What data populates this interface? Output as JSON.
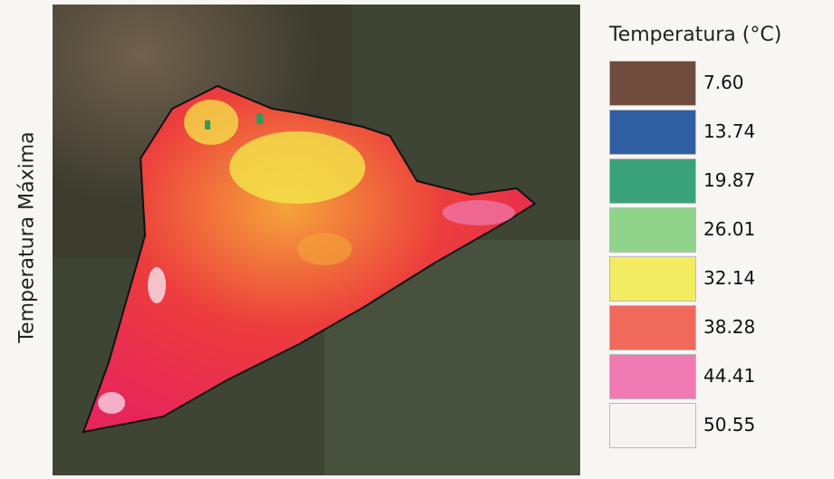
{
  "side_label": "Temperatura Máxima",
  "legend": {
    "title": "Temperatura (°C)",
    "items": [
      {
        "label": "7.60",
        "color": "#6f4c3e"
      },
      {
        "label": "13.74",
        "color": "#2f5ea3"
      },
      {
        "label": "19.87",
        "color": "#39a27c"
      },
      {
        "label": "26.01",
        "color": "#90d48c"
      },
      {
        "label": "32.14",
        "color": "#f2ec63"
      },
      {
        "label": "38.28",
        "color": "#f06a5c"
      },
      {
        "label": "44.41",
        "color": "#f07ab2"
      },
      {
        "label": "50.55",
        "color": "#f8f3f3"
      }
    ]
  }
}
